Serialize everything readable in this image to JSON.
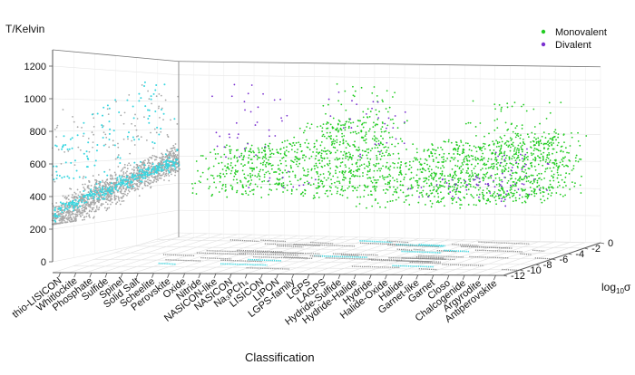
{
  "chart_data": {
    "type": "scatter",
    "dimensionality": "3d",
    "zlabel": "T/Kelvin",
    "xlabel": "Classification",
    "ylabel": "log",
    "ylabel_sub": "10",
    "ylabel_sym": "σ",
    "zlim": [
      0,
      1300
    ],
    "z_ticks": [
      0,
      200,
      400,
      600,
      800,
      1000,
      1200
    ],
    "y_ticks": [
      "0",
      "-2",
      "-4",
      "-6",
      "-8",
      "-10",
      "-12"
    ],
    "grid": true,
    "legend_position": "top-right",
    "categories": [
      "thio-LISICON",
      "Whitlockite",
      "Phosphate",
      "Sulfide",
      "Spinel",
      "Solid Salt",
      "Scheelite",
      "Perovskite",
      "Oxide",
      "Nitride",
      "NASICON-like",
      "NASICON",
      "Na₃PCh₄",
      "LISICON",
      "LIPON",
      "LGPS-family",
      "LGPS",
      "LAGPS",
      "Hydride-Sulfide",
      "Hydride-Halide",
      "Hydride",
      "Halide-Oxide",
      "Halide",
      "Garnet-like",
      "Garnet",
      "Closo",
      "Chalcogenide",
      "Argyrodite",
      "Antiperovskite"
    ],
    "series": [
      {
        "name": "Monovalent",
        "color": "#22cc22"
      },
      {
        "name": "Divalent",
        "color": "#7a2fd0"
      }
    ],
    "colors": {
      "projection_gray": "#9e9e9e",
      "projection_cyan": "#37d6e0",
      "monovalent": "#22cc22",
      "divalent": "#7a2fd0"
    }
  }
}
